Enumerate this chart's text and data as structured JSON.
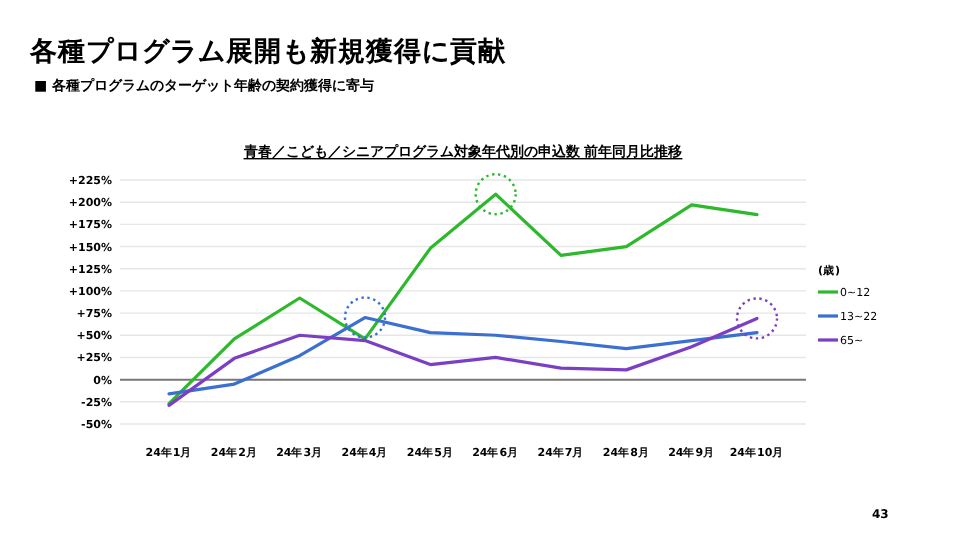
{
  "chart_data": {
    "type": "line",
    "title": "各種プログラム展開も新規獲得に貢献",
    "subtitle": "■ 各種プログラムのターゲット年齢の契約獲得に寄与",
    "annotations": [
      "青春／こども／シニアプログラム対象年代別の申込数 前年同月比推移",
      "43"
    ],
    "categories": [
      "24年1月",
      "24年2月",
      "24年3月",
      "24年4月",
      "24年5月",
      "24年6月",
      "24年7月",
      "24年8月",
      "24年9月",
      "24年10月"
    ],
    "series": [
      {
        "name": "0~12",
        "color": "#2db82d",
        "values": [
          -27,
          46,
          92,
          46,
          148,
          209,
          140,
          150,
          197,
          186
        ]
      },
      {
        "name": "13~22",
        "color": "#3b6fd0",
        "values": [
          -16,
          -5,
          27,
          70,
          53,
          50,
          43,
          35,
          44,
          53
        ]
      },
      {
        "name": "65~",
        "color": "#7b3fc4",
        "values": [
          -29,
          24,
          50,
          44,
          17,
          25,
          13,
          11,
          37,
          69
        ]
      }
    ],
    "legend_title": "(歳)",
    "legend": "right",
    "ylim": [
      -50,
      225
    ],
    "yticks": [
      {
        "value": -50,
        "label": "-50%"
      },
      {
        "value": -25,
        "label": "-25%"
      },
      {
        "value": 0,
        "label": "0%"
      },
      {
        "value": 25,
        "label": "+25%"
      },
      {
        "value": 50,
        "label": "+50%"
      },
      {
        "value": 75,
        "label": "+75%"
      },
      {
        "value": 100,
        "label": "+100%"
      },
      {
        "value": 125,
        "label": "+125%"
      },
      {
        "value": 150,
        "label": "+150%"
      },
      {
        "value": 175,
        "label": "+175%"
      },
      {
        "value": 200,
        "label": "+200%"
      },
      {
        "value": 225,
        "label": "+225%"
      }
    ],
    "grid": "y",
    "marker": "none",
    "line_style": "solid"
  }
}
